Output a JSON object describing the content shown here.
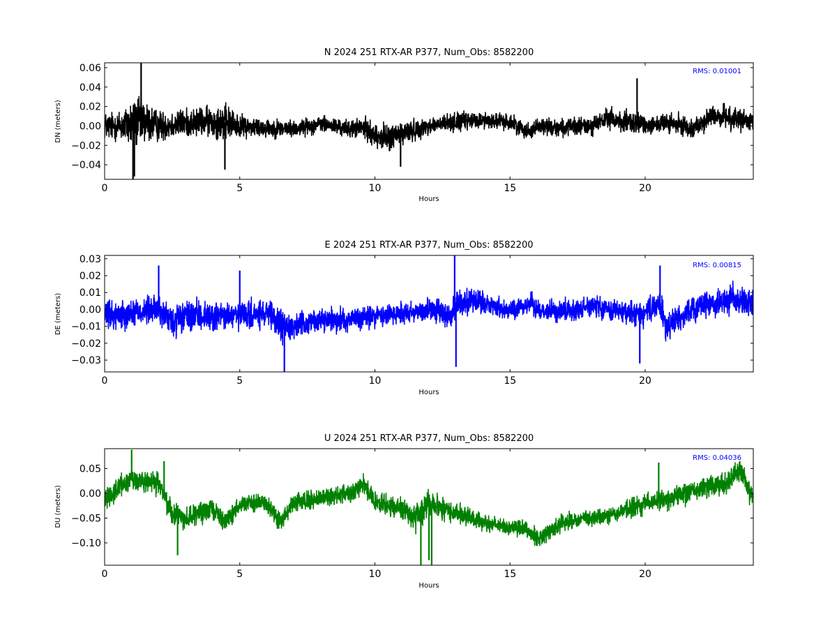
{
  "chart_data": [
    {
      "type": "line",
      "title": "N 2024 251 RTX-AR  P377, Num_Obs: 8582200",
      "xlabel": "Hours",
      "ylabel": "DN (meters)",
      "xlim": [
        0,
        24
      ],
      "ylim": [
        -0.055,
        0.065
      ],
      "xticks": [
        0,
        5,
        10,
        15,
        20
      ],
      "yticks": [
        -0.04,
        -0.02,
        0.0,
        0.02,
        0.04,
        0.06
      ],
      "ytick_labels": [
        "−0.04",
        "−0.02",
        "0.00",
        "0.02",
        "0.04",
        "0.06"
      ],
      "color": "#000000",
      "annotation": "RMS:  0.01001",
      "annotation_color": "#0000ff",
      "envelope": {
        "x": [
          0,
          0.5,
          1.0,
          1.3,
          1.6,
          2.0,
          3.0,
          4.0,
          4.4,
          5.0,
          6.0,
          7.0,
          8.0,
          9.0,
          9.6,
          10.0,
          10.5,
          11.0,
          12.0,
          13.0,
          14.0,
          15.0,
          15.7,
          16.0,
          17.0,
          18.0,
          18.7,
          19.0,
          19.6,
          20.0,
          21.0,
          21.8,
          22.5,
          23.0,
          24.0
        ],
        "center": [
          0.0,
          0.0,
          0.002,
          0.005,
          0.003,
          0.0,
          0.003,
          0.005,
          0.004,
          0.0,
          -0.002,
          -0.003,
          0.002,
          -0.003,
          -0.002,
          -0.01,
          -0.012,
          -0.008,
          0.0,
          0.004,
          0.006,
          0.004,
          -0.006,
          0.0,
          -0.002,
          0.0,
          0.008,
          0.005,
          0.002,
          0.002,
          0.002,
          -0.002,
          0.01,
          0.01,
          0.002
        ],
        "spread": [
          0.02,
          0.022,
          0.035,
          0.04,
          0.03,
          0.022,
          0.02,
          0.022,
          0.028,
          0.016,
          0.014,
          0.012,
          0.012,
          0.012,
          0.016,
          0.016,
          0.02,
          0.018,
          0.012,
          0.014,
          0.012,
          0.012,
          0.012,
          0.012,
          0.013,
          0.014,
          0.016,
          0.016,
          0.018,
          0.014,
          0.015,
          0.013,
          0.016,
          0.016,
          0.015
        ],
        "spikes": [
          [
            1.05,
            -0.055
          ],
          [
            1.1,
            -0.052
          ],
          [
            1.35,
            0.065
          ],
          [
            4.45,
            -0.045
          ],
          [
            19.7,
            0.049
          ],
          [
            10.95,
            -0.042
          ]
        ]
      }
    },
    {
      "type": "line",
      "title": "E 2024 251 RTX-AR  P377, Num_Obs: 8582200",
      "xlabel": "Hours",
      "ylabel": "DE (meters)",
      "xlim": [
        0,
        24
      ],
      "ylim": [
        -0.037,
        0.032
      ],
      "xticks": [
        0,
        5,
        10,
        15,
        20
      ],
      "yticks": [
        -0.03,
        -0.02,
        -0.01,
        0.0,
        0.01,
        0.02,
        0.03
      ],
      "ytick_labels": [
        "−0.03",
        "−0.02",
        "−0.01",
        "0.00",
        "0.01",
        "0.02",
        "0.03"
      ],
      "color": "#0000ff",
      "annotation": "RMS:  0.00815",
      "annotation_color": "#0000ff",
      "envelope": {
        "x": [
          0,
          1.0,
          2.0,
          2.5,
          3.0,
          4.0,
          5.0,
          6.0,
          6.6,
          7.0,
          8.0,
          9.0,
          10.0,
          11.0,
          12.0,
          12.8,
          13.0,
          14.0,
          15.0,
          15.8,
          16.0,
          17.0,
          18.0,
          19.0,
          20.0,
          20.5,
          20.8,
          21.0,
          22.0,
          23.0,
          24.0
        ],
        "center": [
          -0.004,
          -0.002,
          0.0,
          -0.008,
          -0.004,
          -0.004,
          -0.004,
          -0.003,
          -0.01,
          -0.01,
          -0.006,
          -0.006,
          -0.004,
          -0.002,
          0.0,
          -0.004,
          0.004,
          0.004,
          -0.001,
          0.004,
          0.0,
          -0.001,
          0.002,
          -0.001,
          -0.003,
          0.004,
          -0.012,
          -0.008,
          0.002,
          0.006,
          0.004
        ],
        "spread": [
          0.012,
          0.012,
          0.012,
          0.014,
          0.013,
          0.012,
          0.012,
          0.012,
          0.014,
          0.01,
          0.009,
          0.01,
          0.01,
          0.01,
          0.01,
          0.012,
          0.012,
          0.01,
          0.008,
          0.008,
          0.008,
          0.009,
          0.009,
          0.009,
          0.01,
          0.012,
          0.013,
          0.011,
          0.011,
          0.012,
          0.012
        ],
        "spikes": [
          [
            2.0,
            0.026
          ],
          [
            5.0,
            0.023
          ],
          [
            6.65,
            -0.037
          ],
          [
            12.95,
            0.032
          ],
          [
            13.0,
            -0.034
          ],
          [
            19.8,
            -0.032
          ],
          [
            20.55,
            0.026
          ]
        ]
      }
    },
    {
      "type": "line",
      "title": "U 2024 251 RTX-AR  P377, Num_Obs: 8582200",
      "xlabel": "Hours",
      "ylabel": "DU (meters)",
      "xlim": [
        0,
        24
      ],
      "ylim": [
        -0.145,
        0.09
      ],
      "xticks": [
        0,
        5,
        10,
        15,
        20
      ],
      "yticks": [
        -0.1,
        -0.05,
        0.0,
        0.05
      ],
      "ytick_labels": [
        "−0.10",
        "−0.05",
        "0.00",
        "0.05"
      ],
      "color": "#008000",
      "annotation": "RMS:  0.04036",
      "annotation_color": "#0000ff",
      "envelope": {
        "x": [
          0,
          0.5,
          1.0,
          1.5,
          2.0,
          2.5,
          3.0,
          4.0,
          4.5,
          5.0,
          6.0,
          6.5,
          7.0,
          8.0,
          9.0,
          9.6,
          10.0,
          11.0,
          11.5,
          12.0,
          13.0,
          14.0,
          15.0,
          15.5,
          16.0,
          17.0,
          18.0,
          19.0,
          20.0,
          21.0,
          22.0,
          23.0,
          23.5,
          24.0
        ],
        "center": [
          -0.01,
          0.01,
          0.03,
          0.02,
          0.02,
          -0.04,
          -0.05,
          -0.03,
          -0.06,
          -0.02,
          -0.02,
          -0.06,
          -0.02,
          -0.01,
          0.0,
          0.02,
          -0.02,
          -0.03,
          -0.05,
          -0.02,
          -0.04,
          -0.06,
          -0.07,
          -0.07,
          -0.09,
          -0.06,
          -0.05,
          -0.04,
          -0.02,
          -0.01,
          0.01,
          0.02,
          0.05,
          -0.01
        ],
        "spread": [
          0.03,
          0.03,
          0.035,
          0.03,
          0.03,
          0.035,
          0.03,
          0.028,
          0.025,
          0.025,
          0.025,
          0.025,
          0.025,
          0.025,
          0.025,
          0.03,
          0.028,
          0.03,
          0.04,
          0.035,
          0.028,
          0.025,
          0.022,
          0.022,
          0.025,
          0.025,
          0.025,
          0.025,
          0.03,
          0.03,
          0.03,
          0.03,
          0.03,
          0.035
        ],
        "spikes": [
          [
            1.0,
            0.088
          ],
          [
            2.2,
            0.065
          ],
          [
            2.7,
            -0.125
          ],
          [
            11.7,
            -0.145
          ],
          [
            12.1,
            -0.145
          ],
          [
            12.0,
            -0.135
          ],
          [
            20.5,
            0.062
          ]
        ]
      }
    }
  ]
}
